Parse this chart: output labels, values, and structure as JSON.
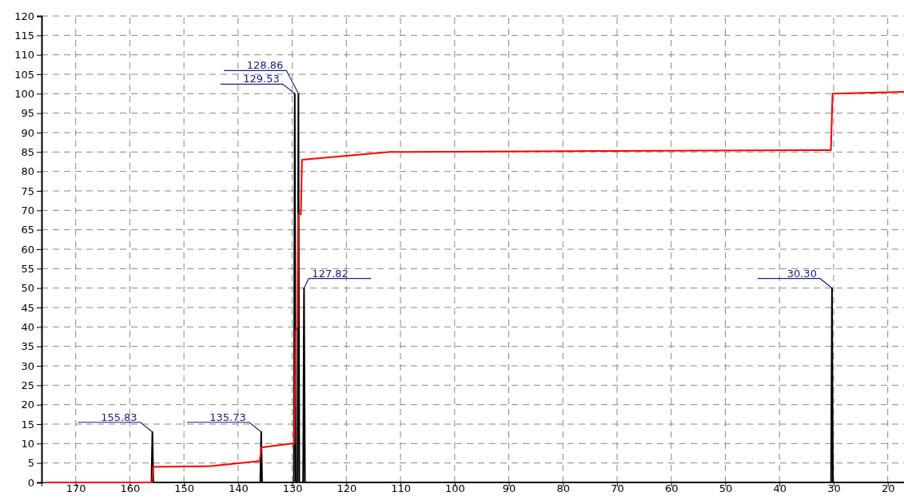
{
  "chart_data": {
    "type": "line",
    "xlim": [
      176.3,
      17.0
    ],
    "ylim": [
      0,
      120
    ],
    "xticks": [
      170,
      160,
      150,
      140,
      130,
      120,
      110,
      100,
      90,
      80,
      70,
      60,
      50,
      40,
      30,
      20
    ],
    "yticks": [
      0,
      5,
      10,
      15,
      20,
      25,
      30,
      35,
      40,
      45,
      50,
      55,
      60,
      65,
      70,
      75,
      80,
      85,
      90,
      95,
      100,
      105,
      110,
      115,
      120
    ],
    "grid": true,
    "line_style": "solid",
    "series": [
      {
        "color": "#000000",
        "x": [
          174.0,
          156.0,
          155.83,
          155.66,
          135.9,
          135.73,
          135.56,
          129.7,
          129.53,
          129.36,
          129.03,
          128.86,
          128.69,
          127.99,
          127.82,
          127.65,
          30.47,
          30.3,
          30.13,
          17.0
        ],
        "values": [
          0,
          0,
          13,
          0,
          0,
          13,
          0,
          0,
          100,
          0,
          0,
          100,
          0,
          0,
          50,
          0,
          0,
          50,
          0,
          0
        ]
      },
      {
        "color": "#ff0000",
        "x": [
          175.5,
          155.9,
          155.7,
          145,
          136,
          135.7,
          130,
          129.6,
          129.4,
          129.0,
          128.9,
          128.4,
          128.2,
          112,
          30.5,
          30.2,
          17.0
        ],
        "values": [
          0,
          0,
          4,
          4.2,
          5.5,
          9,
          10,
          10,
          39,
          40,
          69,
          69,
          83,
          85,
          85.5,
          100,
          100.5
        ]
      }
    ],
    "annotations": [
      {
        "text": "155.83",
        "x": 155.83,
        "y": 13
      },
      {
        "text": "135.73",
        "x": 135.73,
        "y": 13
      },
      {
        "text": "129.53",
        "x": 129.53,
        "y": 100
      },
      {
        "text": "128.86",
        "x": 128.86,
        "y": 100
      },
      {
        "text": "127.82",
        "x": 127.82,
        "y": 50
      },
      {
        "text": "30.30",
        "x": 30.3,
        "y": 50
      }
    ]
  }
}
